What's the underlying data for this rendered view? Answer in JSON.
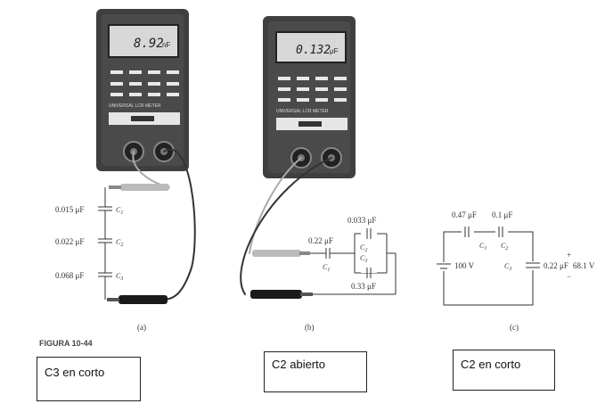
{
  "meters": {
    "a": {
      "value": "8.92",
      "unit": "nF",
      "title": "UNIVERSAL LCR METER"
    },
    "b": {
      "value": "0.132",
      "unit": "μF",
      "title": "UNIVERSAL LCR METER"
    }
  },
  "circuit_a": {
    "caps": [
      {
        "value": "0.015 μF",
        "name": "C",
        "sub": "1"
      },
      {
        "value": "0.022 μF",
        "name": "C",
        "sub": "2"
      },
      {
        "value": "0.068 μF",
        "name": "C",
        "sub": "3"
      }
    ],
    "label": "(a)"
  },
  "circuit_b": {
    "c1_value": "0.22 μF",
    "c1_name": "C",
    "c1_sub": "1",
    "c2_value": "0.033 μF",
    "c2_name": "C",
    "c2_sub": "2",
    "c3_value": "0.33 μF",
    "c3_name": "C",
    "c3_sub": "3",
    "label": "(b)"
  },
  "circuit_c": {
    "c1_value": "0.47 μF",
    "c1_name": "C",
    "c1_sub": "1",
    "c2_value": "0.1 μF",
    "c2_name": "C",
    "c2_sub": "2",
    "c3_name": "C",
    "c3_sub": "3",
    "c3_value": "0.22 μF",
    "source": "100 V",
    "measured": "68.1 V",
    "plus": "+",
    "minus": "−",
    "label": "(c)"
  },
  "figure_caption": "FIGURA 10-44",
  "answers": [
    "C3 en corto",
    "C2 abierto",
    "C2 en corto"
  ]
}
